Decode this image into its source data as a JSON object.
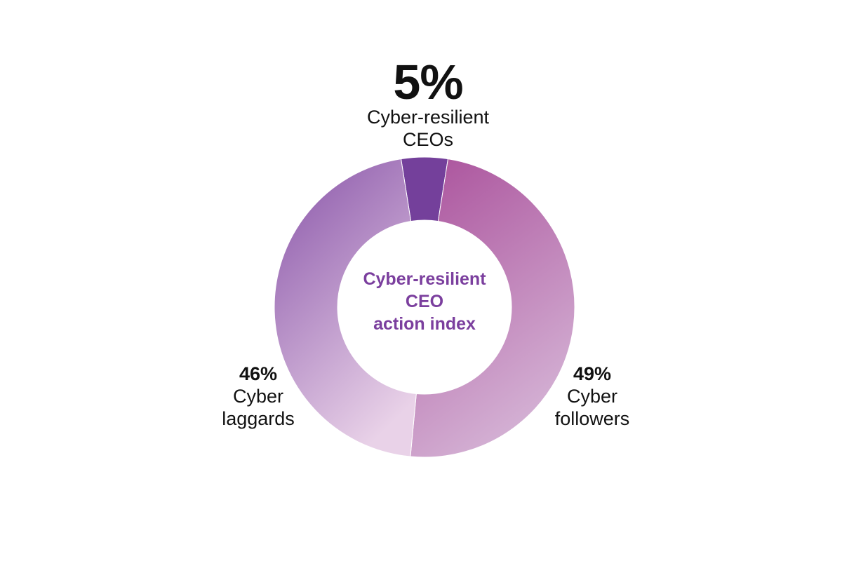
{
  "chart_data": {
    "type": "pie",
    "title": "Cyber-resilient CEO action index",
    "slices": [
      {
        "label": "Cyber-resilient CEOs",
        "value": 5,
        "display": "5%",
        "color": "#74409b"
      },
      {
        "label": "Cyber followers",
        "value": 49,
        "display": "49%",
        "color_start": "#ad579f",
        "color_end": "#d6b6d7"
      },
      {
        "label": "Cyber laggards",
        "value": 46,
        "display": "46%",
        "color_start": "#9a6bb4",
        "color_end": "#e9d2e8"
      }
    ]
  },
  "labels": {
    "top": {
      "pct": "5%",
      "line1": "Cyber-resilient",
      "line2": "CEOs"
    },
    "right": {
      "pct": "49%",
      "line1": "Cyber",
      "line2": "followers"
    },
    "left": {
      "pct": "46%",
      "line1": "Cyber",
      "line2": "laggards"
    }
  },
  "center": {
    "line1": "Cyber-resilient",
    "line2": "CEO",
    "line3": "action index"
  }
}
